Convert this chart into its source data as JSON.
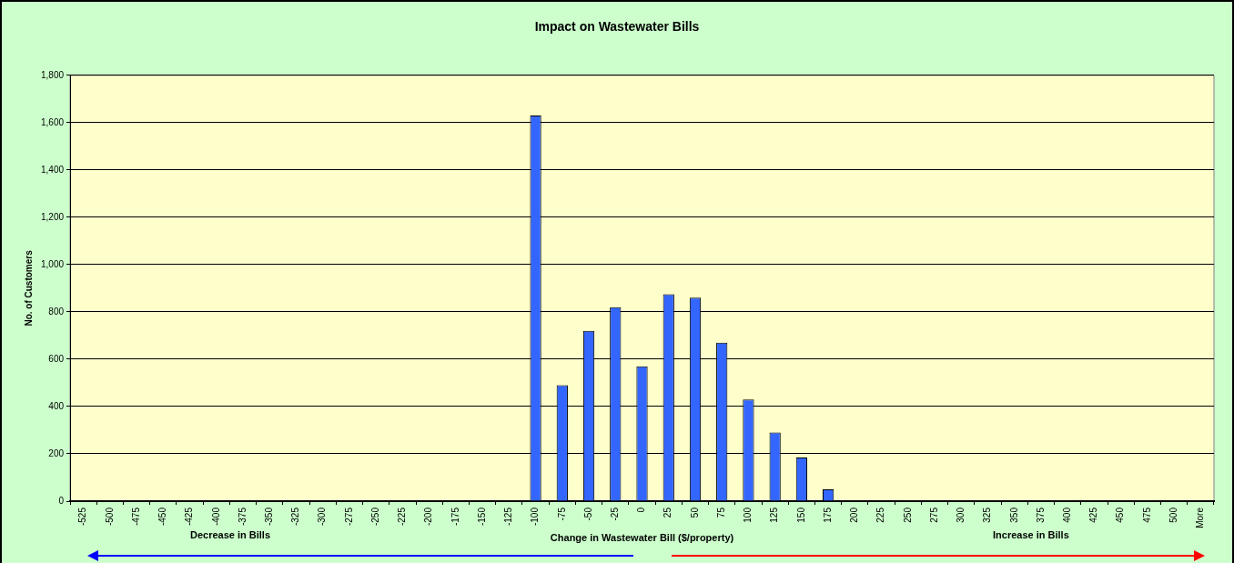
{
  "chart_data": {
    "type": "bar",
    "title": "Impact on Wastewater Bills",
    "xlabel": "Change in Wastewater Bill ($/property)",
    "ylabel": "No. of Customers",
    "categories": [
      "-525",
      "-500",
      "-475",
      "-450",
      "-425",
      "-400",
      "-375",
      "-350",
      "-325",
      "-300",
      "-275",
      "-250",
      "-225",
      "-200",
      "-175",
      "-150",
      "-125",
      "-100",
      "-75",
      "-50",
      "-25",
      "0",
      "25",
      "50",
      "75",
      "100",
      "125",
      "150",
      "175",
      "200",
      "225",
      "250",
      "275",
      "300",
      "325",
      "350",
      "375",
      "400",
      "425",
      "450",
      "475",
      "500",
      "More"
    ],
    "values": [
      0,
      0,
      0,
      0,
      0,
      0,
      0,
      0,
      0,
      0,
      0,
      0,
      0,
      0,
      0,
      0,
      0,
      1630,
      490,
      720,
      820,
      570,
      875,
      860,
      670,
      430,
      290,
      185,
      50,
      0,
      0,
      0,
      0,
      0,
      0,
      0,
      0,
      0,
      0,
      0,
      0,
      0,
      0
    ],
    "color": "#3366ff",
    "ylim": [
      0,
      1800
    ],
    "yticks": [
      {
        "value": 0,
        "label": "0"
      },
      {
        "value": 200,
        "label": "200"
      },
      {
        "value": 400,
        "label": "400"
      },
      {
        "value": 600,
        "label": "600"
      },
      {
        "value": 800,
        "label": "800"
      },
      {
        "value": 1000,
        "label": "1,000"
      },
      {
        "value": 1200,
        "label": "1,200"
      },
      {
        "value": 1400,
        "label": "1,400"
      },
      {
        "value": 1600,
        "label": "1,600"
      },
      {
        "value": 1800,
        "label": "1,800"
      }
    ],
    "grid": "y",
    "annotations": [
      "Decrease in Bills",
      "Increase in Bills"
    ]
  }
}
